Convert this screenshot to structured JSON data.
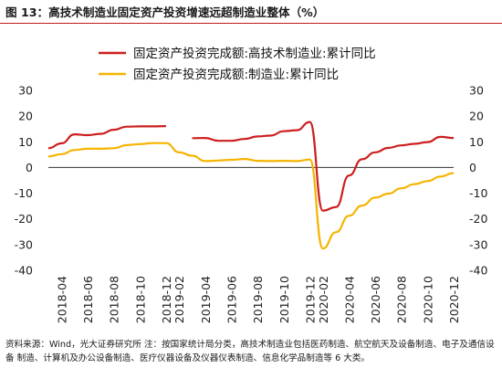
{
  "figure": {
    "title": "图 13：高技术制造业固定资产投资增速远超制造业整体（%）",
    "source": "资料来源：Wind，光大证券研究所  注：按国家统计局分类，高技术制造业包括医药制造、航空航天及设备制造、电子及通信设备 制造、计算机及办公设备制造、医疗仪器设备及仪器仪表制造、信息化学品制造等 6 大类。"
  },
  "colors": {
    "high_tech": "#cc1f1f",
    "manufacturing": "#f5b400",
    "title_rule": "#c41a1a",
    "axis": "#333333"
  },
  "chart_data": {
    "type": "line",
    "title": "",
    "xlabel": "",
    "ylabel": "",
    "ylim": [
      -40,
      30
    ],
    "yticks": [
      -40,
      -30,
      -20,
      -10,
      0,
      10,
      20,
      30
    ],
    "y2lim": [
      -40,
      30
    ],
    "y2ticks": [
      -40,
      -30,
      -20,
      -10,
      0,
      10,
      20,
      30
    ],
    "grid": false,
    "legend_position": "top-center",
    "x": [
      "2018-03",
      "2018-04",
      "2018-05",
      "2018-06",
      "2018-07",
      "2018-08",
      "2018-09",
      "2018-10",
      "2018-11",
      "2018-12",
      "2019-02",
      "2019-03",
      "2019-04",
      "2019-05",
      "2019-06",
      "2019-07",
      "2019-08",
      "2019-09",
      "2019-10",
      "2019-11",
      "2019-12",
      "2020-02",
      "2020-03",
      "2020-04",
      "2020-05",
      "2020-06",
      "2020-07",
      "2020-08",
      "2020-09",
      "2020-10",
      "2020-11",
      "2020-12"
    ],
    "xticks": [
      "2018-04",
      "2018-06",
      "2018-08",
      "2018-10",
      "2018-12",
      "2019-02",
      "2019-04",
      "2019-06",
      "2019-08",
      "2019-10",
      "2019-12",
      "2020-02",
      "2020-04",
      "2020-06",
      "2020-08",
      "2020-10",
      "2020-12"
    ],
    "series": [
      {
        "name": "固定资产投资完成额:高技术制造业:累计同比",
        "values": [
          7.5,
          9.4,
          12.9,
          12.6,
          13.1,
          14.7,
          15.9,
          16.0,
          16.0,
          16.1,
          null,
          11.4,
          11.5,
          10.4,
          10.4,
          11.1,
          12.1,
          12.4,
          14.1,
          14.5,
          17.7,
          -16.8,
          -15.4,
          -3.1,
          3.2,
          5.9,
          7.6,
          8.6,
          9.2,
          9.9,
          11.9,
          11.5
        ]
      },
      {
        "name": "固定资产投资完成额:制造业:累计同比",
        "values": [
          4.3,
          5.2,
          6.8,
          7.3,
          7.3,
          7.5,
          8.7,
          9.1,
          9.5,
          9.5,
          5.9,
          4.6,
          2.5,
          2.7,
          3.0,
          3.3,
          2.6,
          2.5,
          2.6,
          2.5,
          3.1,
          -31.5,
          -25.2,
          -18.8,
          -14.8,
          -11.7,
          -10.2,
          -8.1,
          -6.5,
          -5.3,
          -3.5,
          -2.2
        ]
      }
    ]
  }
}
